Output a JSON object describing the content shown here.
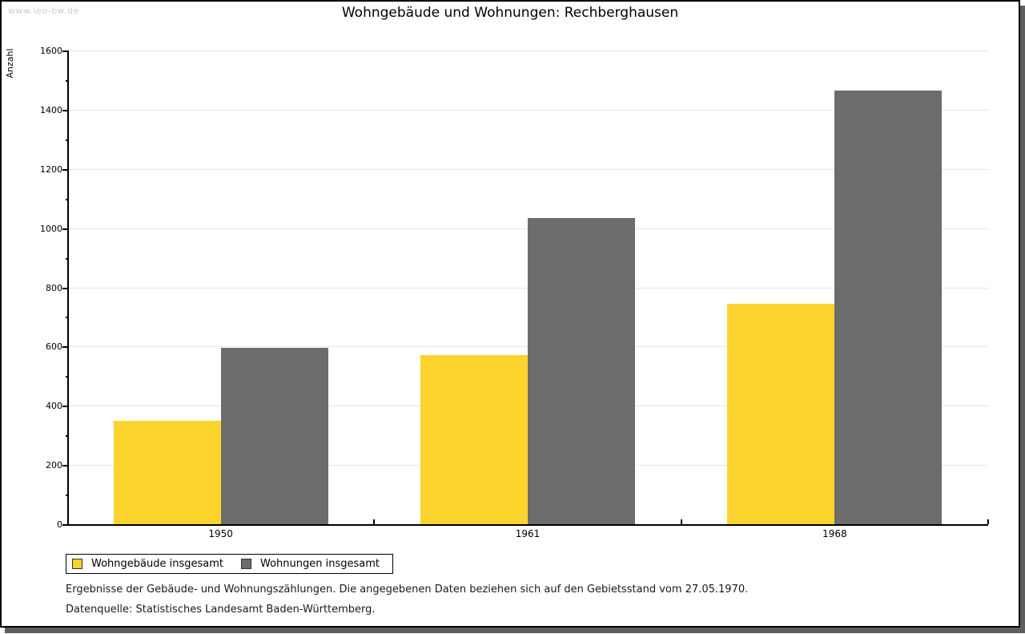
{
  "watermark": "www.leo-bw.de",
  "chart_data": {
    "type": "bar",
    "title": "Wohngebäude und Wohnungen: Rechberghausen",
    "xlabel": "",
    "ylabel": "Anzahl",
    "categories": [
      "1950",
      "1961",
      "1968"
    ],
    "series": [
      {
        "name": "Wohngebäude insgesamt",
        "color": "#fdd32d",
        "values": [
          350,
          570,
          745
        ]
      },
      {
        "name": "Wohnungen insgesamt",
        "color": "#6c6c6c",
        "values": [
          595,
          1035,
          1465
        ]
      }
    ],
    "ylim": [
      0,
      1600
    ],
    "yticks": [
      0,
      200,
      400,
      600,
      800,
      1000,
      1200,
      1400,
      1600
    ],
    "ytick_minor_step": 100,
    "grid": true,
    "legend_position": "bottom-left"
  },
  "footer": {
    "line1": "Ergebnisse der Gebäude- und Wohnungszählungen. Die angegebenen Daten beziehen sich auf den Gebietsstand vom 27.05.1970.",
    "line2": "Datenquelle: Statistisches Landesamt Baden-Württemberg."
  },
  "colors": {
    "axis": "#000000",
    "grid": "#e5e5e5",
    "watermark": "#cccccc",
    "frame_border": "#000000",
    "frame_shadow": "#5e5e5e"
  }
}
